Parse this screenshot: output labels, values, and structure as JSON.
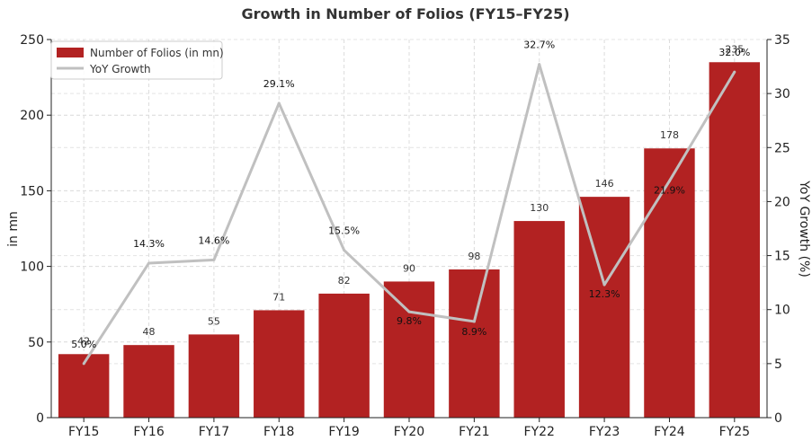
{
  "chart_data": {
    "type": "bar",
    "title": "Growth in Number of Folios (FY15–FY25)",
    "categories": [
      "FY15",
      "FY16",
      "FY17",
      "FY18",
      "FY19",
      "FY20",
      "FY21",
      "FY22",
      "FY23",
      "FY24",
      "FY25"
    ],
    "series": [
      {
        "name": "Number of Folios (in mn)",
        "type": "bar",
        "axis": "left",
        "values": [
          42,
          48,
          55,
          71,
          82,
          90,
          98,
          130,
          146,
          178,
          235
        ],
        "labels": [
          "42",
          "48",
          "55",
          "71",
          "82",
          "90",
          "98",
          "130",
          "146",
          "178",
          "235"
        ]
      },
      {
        "name": "YoY Growth",
        "type": "line",
        "axis": "right",
        "values": [
          5.0,
          14.3,
          14.6,
          29.1,
          15.5,
          9.8,
          8.9,
          32.7,
          12.3,
          21.9,
          32.0
        ],
        "labels": [
          "5.0%",
          "14.3%",
          "14.6%",
          "29.1%",
          "15.5%",
          "9.8%",
          "8.9%",
          "32.7%",
          "12.3%",
          "21.9%",
          "32.0%"
        ]
      }
    ],
    "ylabel": "in mn",
    "y2label": "YoY Growth (%)",
    "ylim": [
      0,
      250
    ],
    "y2lim": [
      0,
      35
    ],
    "yticks": [
      "0",
      "50",
      "100",
      "150",
      "200",
      "250"
    ],
    "y2ticks": [
      "0",
      "5",
      "10",
      "15",
      "20",
      "25",
      "30",
      "35"
    ],
    "grid": true,
    "legend_position": "top-left",
    "colors": {
      "bar": "#b22222",
      "line": "#c0c0c0"
    }
  }
}
